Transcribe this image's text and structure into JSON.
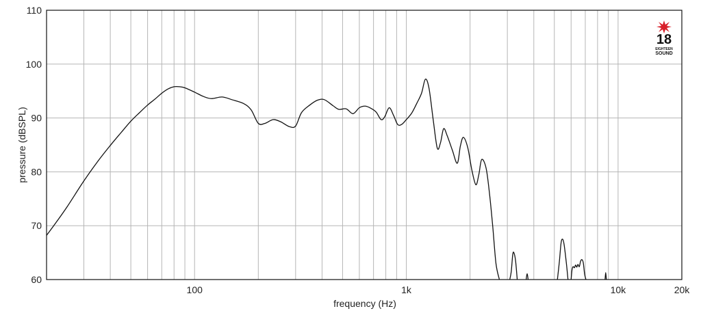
{
  "chart_data": {
    "type": "line",
    "xlabel": "frequency (Hz)",
    "ylabel": "pressure (dBSPL)",
    "x_scale": "log",
    "xlim": [
      20,
      20000
    ],
    "ylim": [
      60,
      110
    ],
    "grid": true,
    "x_ticks": [
      {
        "value": 100,
        "label": "100"
      },
      {
        "value": 1000,
        "label": "1k"
      },
      {
        "value": 10000,
        "label": "10k"
      },
      {
        "value": 20000,
        "label": "20k"
      }
    ],
    "y_ticks": [
      {
        "value": 60,
        "label": "60"
      },
      {
        "value": 70,
        "label": "70"
      },
      {
        "value": 80,
        "label": "80"
      },
      {
        "value": 90,
        "label": "90"
      },
      {
        "value": 100,
        "label": "100"
      },
      {
        "value": 110,
        "label": "110"
      }
    ],
    "line_color": "#111111",
    "grid_color": "#b5b5b5",
    "series": [
      {
        "segments": [
          [
            [
              20,
              68.2
            ],
            [
              22,
              70.4
            ],
            [
              25,
              73.5
            ],
            [
              30,
              78.3
            ],
            [
              35,
              82.0
            ],
            [
              40,
              84.9
            ],
            [
              45,
              87.3
            ],
            [
              50,
              89.4
            ],
            [
              55,
              91.0
            ],
            [
              60,
              92.4
            ],
            [
              65,
              93.5
            ],
            [
              70,
              94.6
            ],
            [
              75,
              95.4
            ],
            [
              80,
              95.8
            ],
            [
              85,
              95.8
            ],
            [
              90,
              95.6
            ],
            [
              100,
              94.8
            ],
            [
              110,
              94.0
            ],
            [
              120,
              93.6
            ],
            [
              135,
              93.9
            ],
            [
              150,
              93.4
            ],
            [
              170,
              92.7
            ],
            [
              185,
              91.5
            ],
            [
              200,
              89.0
            ],
            [
              215,
              89.0
            ],
            [
              235,
              89.7
            ],
            [
              255,
              89.3
            ],
            [
              280,
              88.4
            ],
            [
              300,
              88.5
            ],
            [
              320,
              91.0
            ],
            [
              350,
              92.4
            ],
            [
              380,
              93.3
            ],
            [
              410,
              93.4
            ],
            [
              450,
              92.3
            ],
            [
              480,
              91.6
            ],
            [
              520,
              91.7
            ],
            [
              560,
              90.8
            ],
            [
              600,
              91.9
            ],
            [
              640,
              92.2
            ],
            [
              680,
              91.8
            ],
            [
              720,
              91.1
            ],
            [
              760,
              89.7
            ],
            [
              790,
              90.2
            ],
            [
              830,
              91.9
            ],
            [
              870,
              90.5
            ],
            [
              910,
              88.8
            ],
            [
              950,
              88.8
            ],
            [
              1000,
              89.7
            ],
            [
              1060,
              90.9
            ],
            [
              1120,
              92.7
            ],
            [
              1180,
              94.6
            ],
            [
              1230,
              97.2
            ],
            [
              1280,
              95.5
            ],
            [
              1340,
              89.6
            ],
            [
              1400,
              84.4
            ],
            [
              1450,
              85.4
            ],
            [
              1500,
              88.0
            ],
            [
              1560,
              86.7
            ],
            [
              1650,
              84.0
            ],
            [
              1740,
              81.6
            ],
            [
              1800,
              84.8
            ],
            [
              1860,
              86.4
            ],
            [
              1950,
              84.5
            ],
            [
              2040,
              80.3
            ],
            [
              2130,
              77.6
            ],
            [
              2200,
              79.5
            ],
            [
              2270,
              82.3
            ],
            [
              2380,
              80.7
            ],
            [
              2470,
              76.0
            ],
            [
              2560,
              69.8
            ],
            [
              2650,
              63.0
            ],
            [
              2750,
              60.0
            ]
          ],
          [
            [
              3080,
              60.0
            ],
            [
              3130,
              61.5
            ],
            [
              3180,
              64.6
            ],
            [
              3220,
              65.0
            ],
            [
              3280,
              63.5
            ],
            [
              3340,
              60.0
            ]
          ],
          [
            [
              3680,
              60.0
            ],
            [
              3720,
              61.1
            ],
            [
              3760,
              60.0
            ]
          ],
          [
            [
              5170,
              60.0
            ],
            [
              5280,
              63.3
            ],
            [
              5380,
              66.8
            ],
            [
              5470,
              67.5
            ],
            [
              5560,
              66.5
            ],
            [
              5700,
              63.0
            ],
            [
              5800,
              60.0
            ]
          ],
          [
            [
              6000,
              60.0
            ],
            [
              6060,
              61.8
            ],
            [
              6130,
              62.4
            ],
            [
              6220,
              62.2
            ],
            [
              6300,
              62.7
            ],
            [
              6380,
              62.3
            ],
            [
              6460,
              62.8
            ],
            [
              6560,
              62.4
            ],
            [
              6650,
              63.4
            ],
            [
              6750,
              63.7
            ],
            [
              6850,
              63.1
            ],
            [
              6950,
              61.0
            ],
            [
              7050,
              60.0
            ]
          ],
          [
            [
              8680,
              60.0
            ],
            [
              8740,
              61.3
            ],
            [
              8800,
              60.0
            ]
          ]
        ]
      }
    ],
    "logo": {
      "number": "18",
      "line1": "EIGHTEEN",
      "line2": "SOUND",
      "star_color": "#d8202a"
    }
  }
}
